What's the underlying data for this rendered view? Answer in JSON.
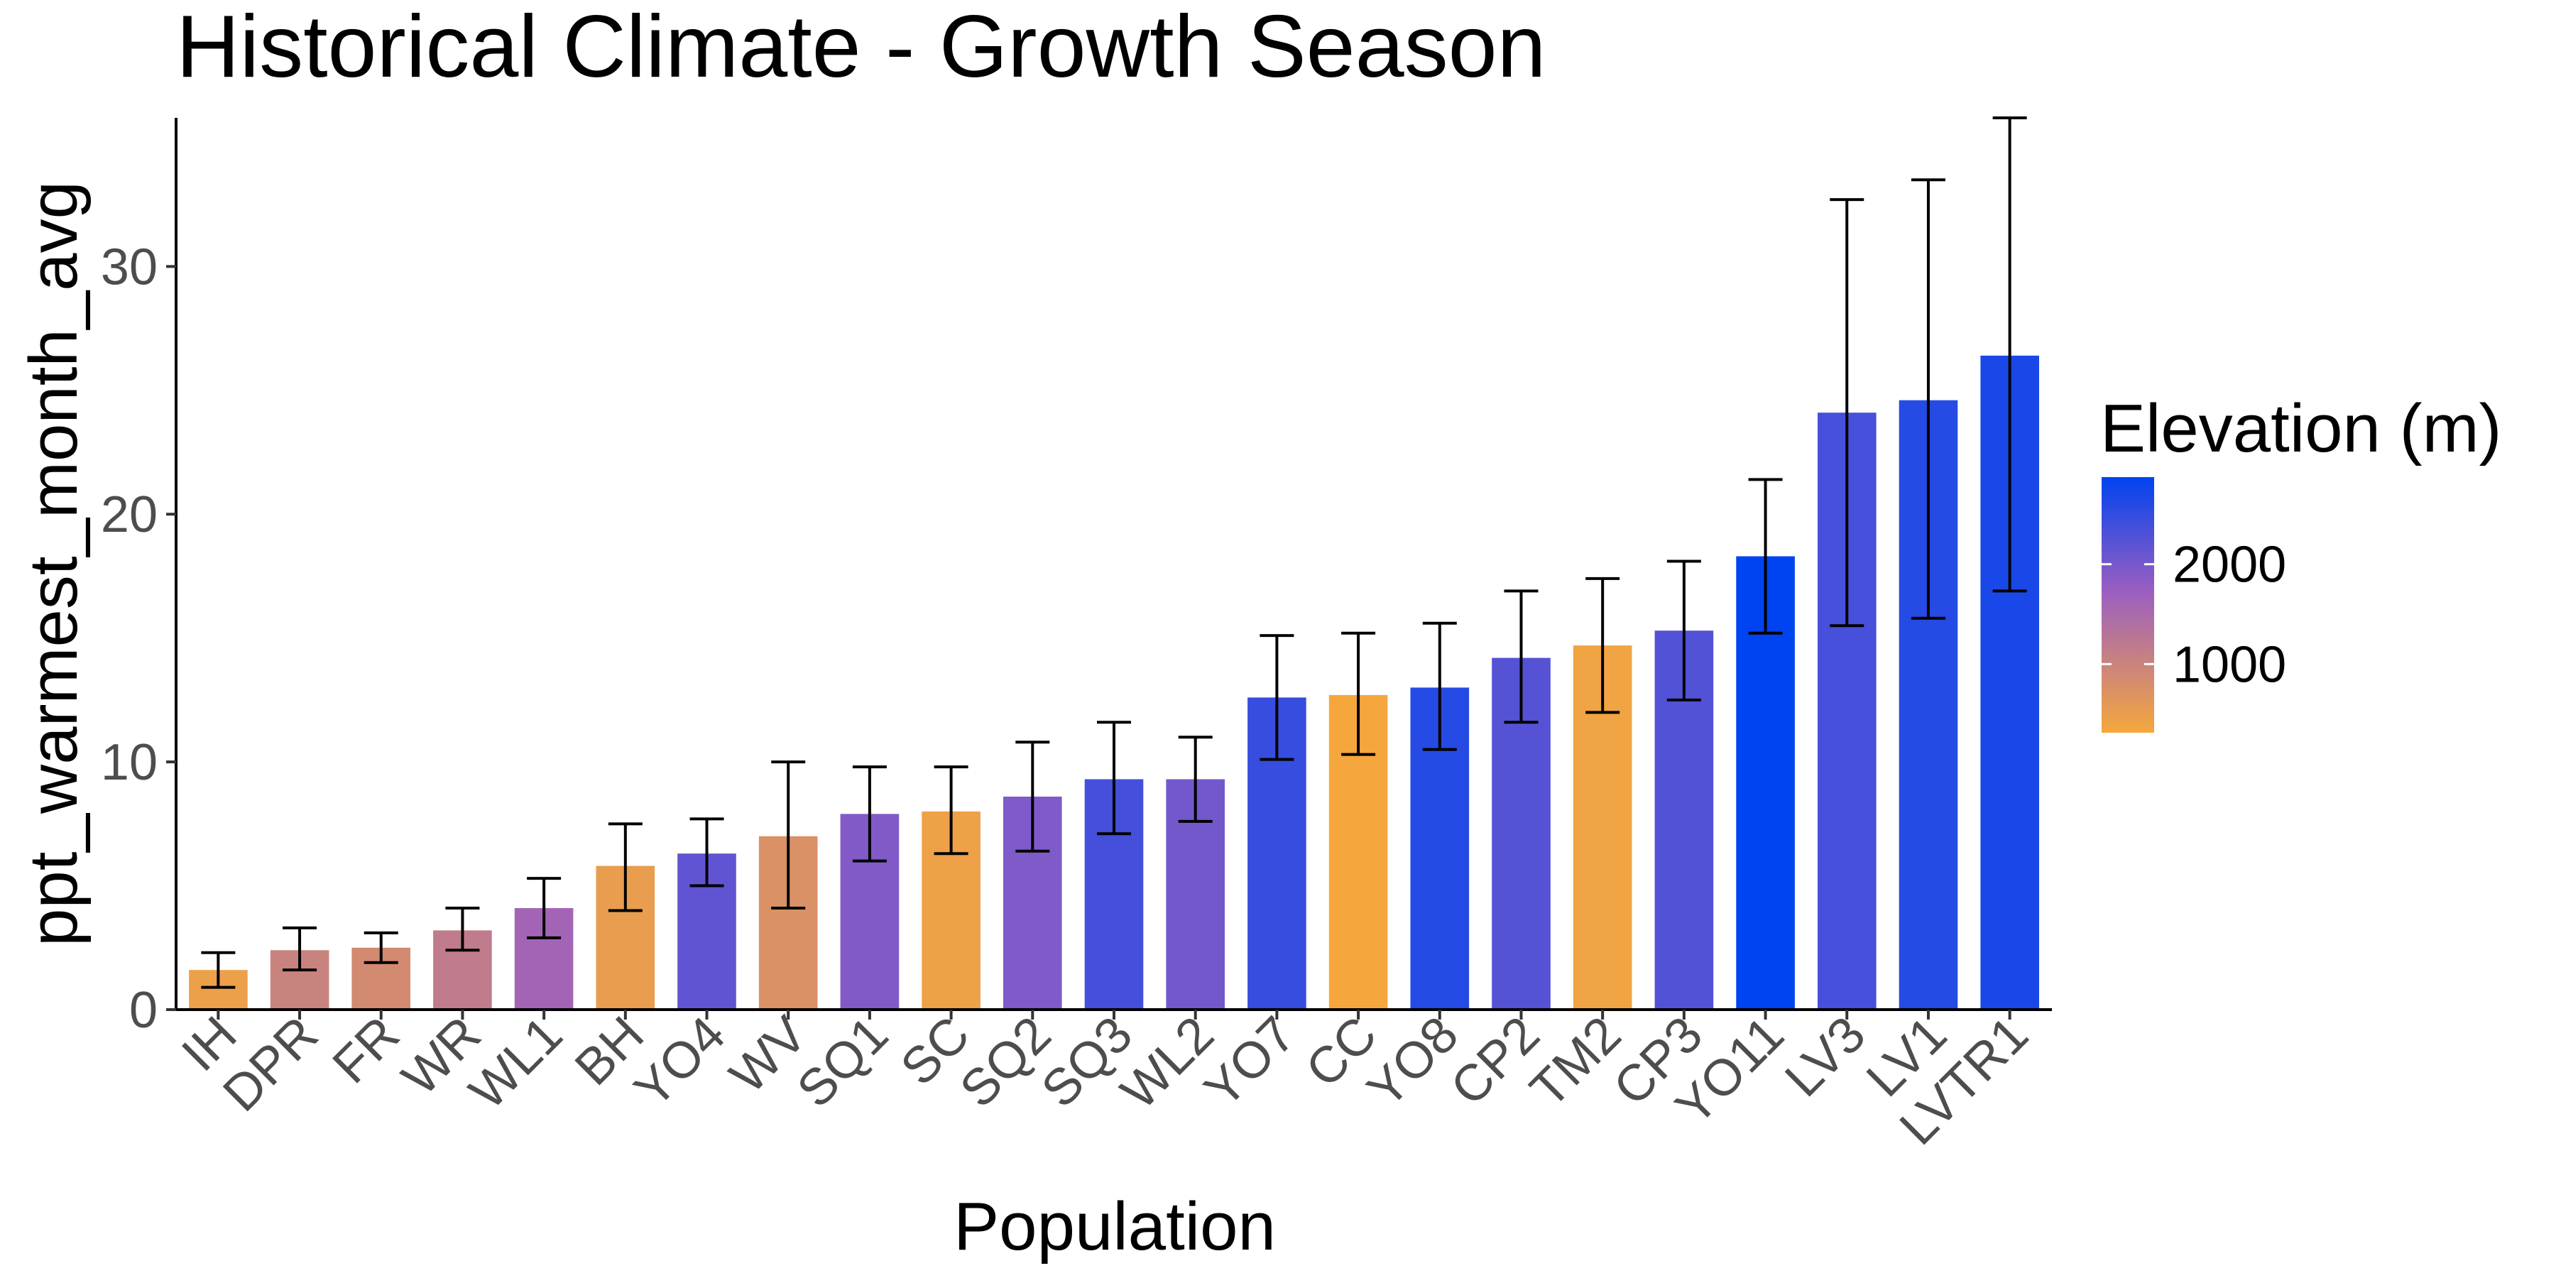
{
  "chart_data": {
    "type": "bar",
    "title": "Historical Climate - Growth Season",
    "xlabel": "Population",
    "ylabel": "ppt_warmest_month_avg",
    "ylim": [
      0,
      36
    ],
    "yticks": [
      0,
      10,
      20,
      30
    ],
    "categories": [
      "IH",
      "DPR",
      "FR",
      "WR",
      "WL1",
      "BH",
      "YO4",
      "WV",
      "SQ1",
      "SC",
      "SQ2",
      "SQ3",
      "WL2",
      "YO7",
      "CC",
      "YO8",
      "CP2",
      "TM2",
      "CP3",
      "YO11",
      "LV3",
      "LV1",
      "LVTR1"
    ],
    "values": [
      1.6,
      2.4,
      2.5,
      3.2,
      4.1,
      5.8,
      6.3,
      7.0,
      7.9,
      8.0,
      8.6,
      9.3,
      9.3,
      12.6,
      12.7,
      13.0,
      14.2,
      14.7,
      15.3,
      18.3,
      24.1,
      24.6,
      26.4
    ],
    "error_low": [
      0.9,
      1.6,
      1.9,
      2.4,
      2.9,
      4.0,
      5.0,
      4.1,
      6.0,
      6.3,
      6.4,
      7.1,
      7.6,
      10.1,
      10.3,
      10.5,
      11.6,
      12.0,
      12.5,
      15.2,
      15.5,
      15.8,
      16.9
    ],
    "error_high": [
      2.3,
      3.3,
      3.1,
      4.1,
      5.3,
      7.5,
      7.7,
      10.0,
      9.8,
      9.8,
      10.8,
      11.6,
      11.0,
      15.1,
      15.2,
      15.6,
      16.9,
      17.4,
      18.1,
      21.4,
      32.7,
      33.5,
      36.0
    ],
    "elevation": [
      454,
      1019,
      873,
      1158,
      1614,
      511,
      2158,
      748,
      1921,
      422,
      1934,
      2373,
      2020,
      2470,
      313,
      2591,
      2244,
      379,
      2266,
      2872,
      2353,
      2593,
      2680
    ],
    "legend": {
      "title": "Elevation (m)",
      "position": "right",
      "min": 313,
      "max": 2872,
      "ticks": [
        1000,
        2000
      ],
      "tick_labels": [
        "1000",
        "2000"
      ],
      "colors": {
        "low": "#f5a73d",
        "mid": "#9c5fc0",
        "high": "#0043f0"
      }
    }
  }
}
